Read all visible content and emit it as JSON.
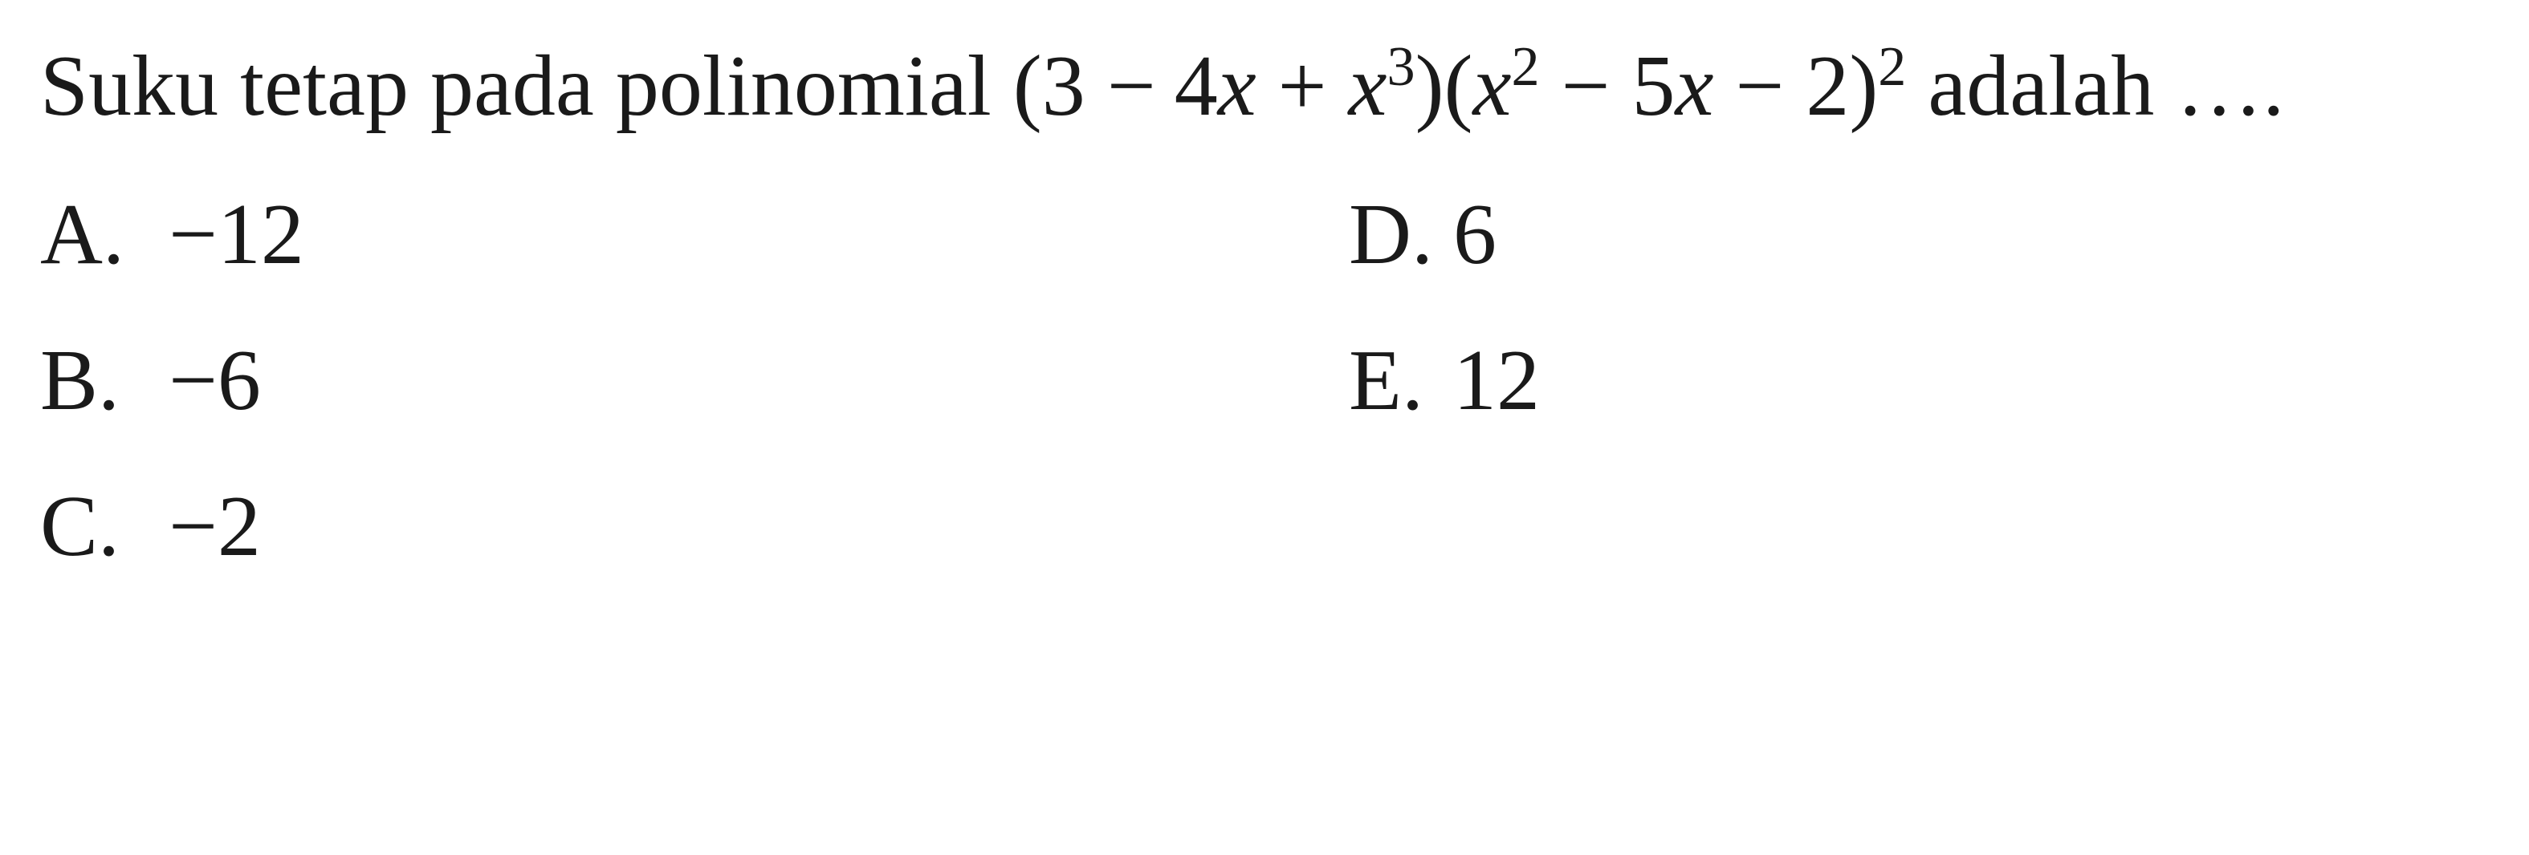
{
  "question": {
    "stem_prefix": "Suku tetap pada polinomial ",
    "expr_plain": "(3 − 4x + x³)(x² − 5x − 2)²",
    "stem_suffix": " adalah ….",
    "font_size_pt": 81,
    "text_color": "#1a1a1a",
    "background_color": "#ffffff",
    "font_family": "Times New Roman"
  },
  "options": {
    "a": {
      "letter": "A.",
      "value": "−12"
    },
    "b": {
      "letter": "B.",
      "value": "−6"
    },
    "c": {
      "letter": "C.",
      "value": "−2"
    },
    "d": {
      "letter": "D.",
      "value": "6"
    },
    "e": {
      "letter": "E.",
      "value": "12"
    }
  },
  "math": {
    "open1": "(3 ",
    "minus1": "− ",
    "four": "4",
    "x1": "x",
    "plus1": " + ",
    "x2": "x",
    "cube": "3",
    "close1": ")(",
    "x3": "x",
    "square1": "2",
    "minus2": " − ",
    "five": "5",
    "x4": "x",
    "minus3": " − 2)",
    "square2": "2"
  }
}
